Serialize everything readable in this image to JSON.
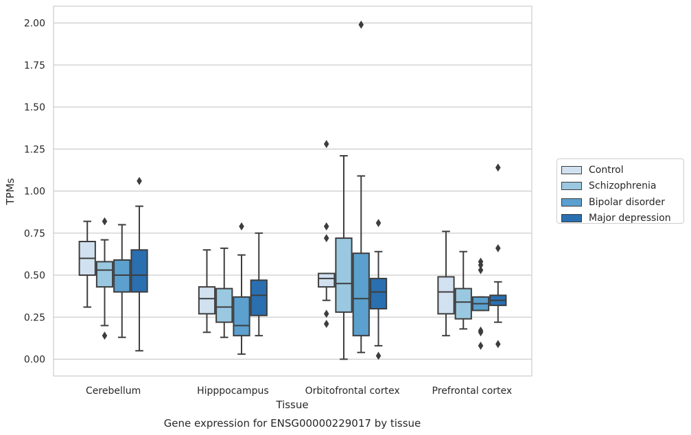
{
  "chart_data": {
    "type": "boxplot",
    "title": "Gene expression for ENSG00000229017 by tissue",
    "xlabel": "Tissue",
    "ylabel": "TPMs",
    "ylim": [
      -0.1,
      2.1
    ],
    "yticks": [
      "0.00",
      "0.25",
      "0.50",
      "0.75",
      "1.00",
      "1.25",
      "1.50",
      "1.75",
      "2.00"
    ],
    "grid": true,
    "legend_position": "right",
    "categories": [
      "Cerebellum",
      "Hipppocampus",
      "Orbitofrontal cortex",
      "Prefrontal cortex"
    ],
    "series": [
      {
        "name": "Control",
        "color": "#d1e1f0",
        "boxes": [
          {
            "whisker_low": 0.31,
            "q1": 0.5,
            "median": 0.6,
            "q3": 0.7,
            "whisker_high": 0.82,
            "outliers": []
          },
          {
            "whisker_low": 0.16,
            "q1": 0.27,
            "median": 0.36,
            "q3": 0.43,
            "whisker_high": 0.65,
            "outliers": []
          },
          {
            "whisker_low": 0.35,
            "q1": 0.43,
            "median": 0.48,
            "q3": 0.51,
            "whisker_high": 0.51,
            "outliers": [
              1.28,
              0.79,
              0.72,
              0.27,
              0.21
            ]
          },
          {
            "whisker_low": 0.14,
            "q1": 0.27,
            "median": 0.4,
            "q3": 0.49,
            "whisker_high": 0.76,
            "outliers": []
          }
        ]
      },
      {
        "name": "Schizophrenia",
        "color": "#9ac8e0",
        "boxes": [
          {
            "whisker_low": 0.2,
            "q1": 0.43,
            "median": 0.53,
            "q3": 0.58,
            "whisker_high": 0.71,
            "outliers": [
              0.82,
              0.14
            ]
          },
          {
            "whisker_low": 0.13,
            "q1": 0.22,
            "median": 0.31,
            "q3": 0.42,
            "whisker_high": 0.66,
            "outliers": []
          },
          {
            "whisker_low": 0.0,
            "q1": 0.28,
            "median": 0.45,
            "q3": 0.72,
            "whisker_high": 1.21,
            "outliers": []
          },
          {
            "whisker_low": 0.18,
            "q1": 0.24,
            "median": 0.34,
            "q3": 0.42,
            "whisker_high": 0.64,
            "outliers": []
          }
        ]
      },
      {
        "name": "Bipolar disorder",
        "color": "#5ba0ce",
        "boxes": [
          {
            "whisker_low": 0.13,
            "q1": 0.4,
            "median": 0.5,
            "q3": 0.59,
            "whisker_high": 0.8,
            "outliers": []
          },
          {
            "whisker_low": 0.03,
            "q1": 0.14,
            "median": 0.2,
            "q3": 0.37,
            "whisker_high": 0.62,
            "outliers": [
              0.79
            ]
          },
          {
            "whisker_low": 0.04,
            "q1": 0.14,
            "median": 0.36,
            "q3": 0.63,
            "whisker_high": 1.09,
            "outliers": [
              1.99
            ]
          },
          {
            "whisker_low": 0.29,
            "q1": 0.29,
            "median": 0.33,
            "q3": 0.37,
            "whisker_high": 0.37,
            "outliers": [
              0.58,
              0.56,
              0.53,
              0.17,
              0.16,
              0.08
            ]
          }
        ]
      },
      {
        "name": "Major depression",
        "color": "#2a6faf",
        "boxes": [
          {
            "whisker_low": 0.05,
            "q1": 0.4,
            "median": 0.5,
            "q3": 0.65,
            "whisker_high": 0.91,
            "outliers": [
              1.06
            ]
          },
          {
            "whisker_low": 0.14,
            "q1": 0.26,
            "median": 0.38,
            "q3": 0.47,
            "whisker_high": 0.75,
            "outliers": []
          },
          {
            "whisker_low": 0.08,
            "q1": 0.3,
            "median": 0.4,
            "q3": 0.48,
            "whisker_high": 0.64,
            "outliers": [
              0.81,
              0.02
            ]
          },
          {
            "whisker_low": 0.22,
            "q1": 0.32,
            "median": 0.35,
            "q3": 0.38,
            "whisker_high": 0.46,
            "outliers": [
              1.14,
              0.66,
              0.09
            ]
          }
        ]
      }
    ]
  }
}
